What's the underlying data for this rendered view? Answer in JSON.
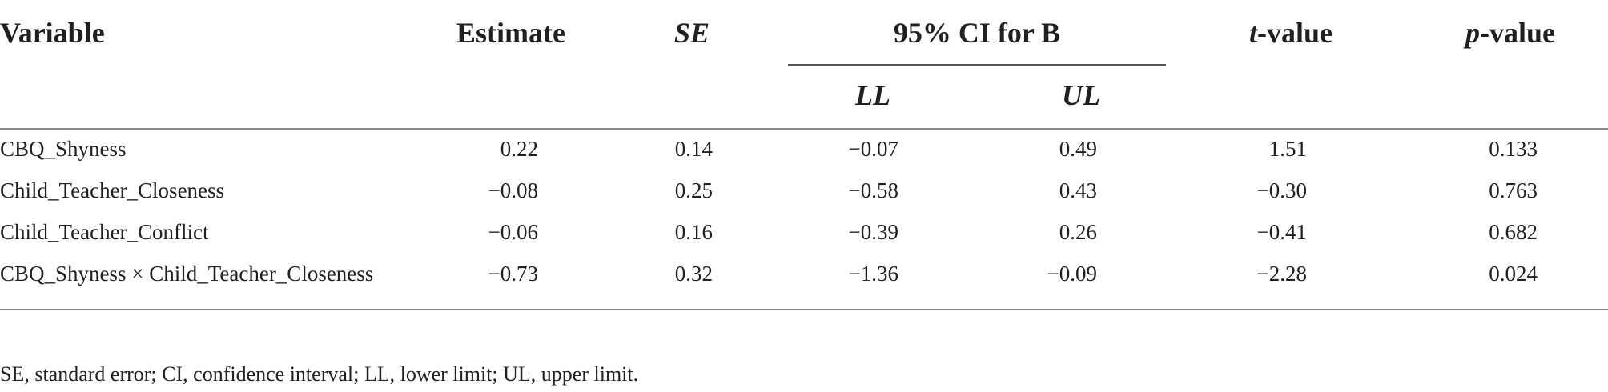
{
  "headers": {
    "variable": "Variable",
    "estimate": "Estimate",
    "se": "SE",
    "ci_group": "95% CI for B",
    "ll": "LL",
    "ul": "UL",
    "t_prefix": "t",
    "t_suffix": "-value",
    "p_prefix": "p",
    "p_suffix": "-value"
  },
  "rows": [
    {
      "variable": "CBQ_Shyness",
      "estimate": "0.22",
      "se": "0.14",
      "ll": "−0.07",
      "ul": "0.49",
      "t": "1.51",
      "p": "0.133"
    },
    {
      "variable": "Child_Teacher_Closeness",
      "estimate": "−0.08",
      "se": "0.25",
      "ll": "−0.58",
      "ul": "0.43",
      "t": "−0.30",
      "p": "0.763"
    },
    {
      "variable": "Child_Teacher_Conflict",
      "estimate": "−0.06",
      "se": "0.16",
      "ll": "−0.39",
      "ul": "0.26",
      "t": "−0.41",
      "p": "0.682"
    },
    {
      "variable": "CBQ_Shyness × Child_Teacher_Closeness",
      "estimate": "−0.73",
      "se": "0.32",
      "ll": "−1.36",
      "ul": "−0.09",
      "t": "−2.28",
      "p": "0.024"
    }
  ],
  "footnote": "SE, standard error; CI, confidence interval; LL, lower limit; UL, upper limit."
}
